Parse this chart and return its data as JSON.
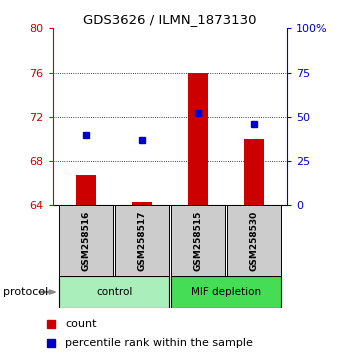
{
  "title": "GDS3626 / ILMN_1873130",
  "samples": [
    "GSM258516",
    "GSM258517",
    "GSM258515",
    "GSM258530"
  ],
  "red_bar_values": [
    66.7,
    64.3,
    76.0,
    70.0
  ],
  "blue_dot_values": [
    40.0,
    37.0,
    52.0,
    46.0
  ],
  "ylim_left": [
    64,
    80
  ],
  "ylim_right": [
    0,
    100
  ],
  "left_yticks": [
    64,
    68,
    72,
    76,
    80
  ],
  "right_yticks": [
    0,
    25,
    50,
    75,
    100
  ],
  "right_yticklabels": [
    "0",
    "25",
    "50",
    "75",
    "100%"
  ],
  "red_color": "#CC0000",
  "blue_color": "#0000CC",
  "bar_width": 0.35,
  "baseline": 64,
  "sample_box_color": "#CCCCCC",
  "control_color": "#AAEEBB",
  "mif_color": "#44DD55",
  "grid_dotted_ticks": [
    68,
    72,
    76
  ],
  "legend_count": "count",
  "legend_pct": "percentile rank within the sample"
}
